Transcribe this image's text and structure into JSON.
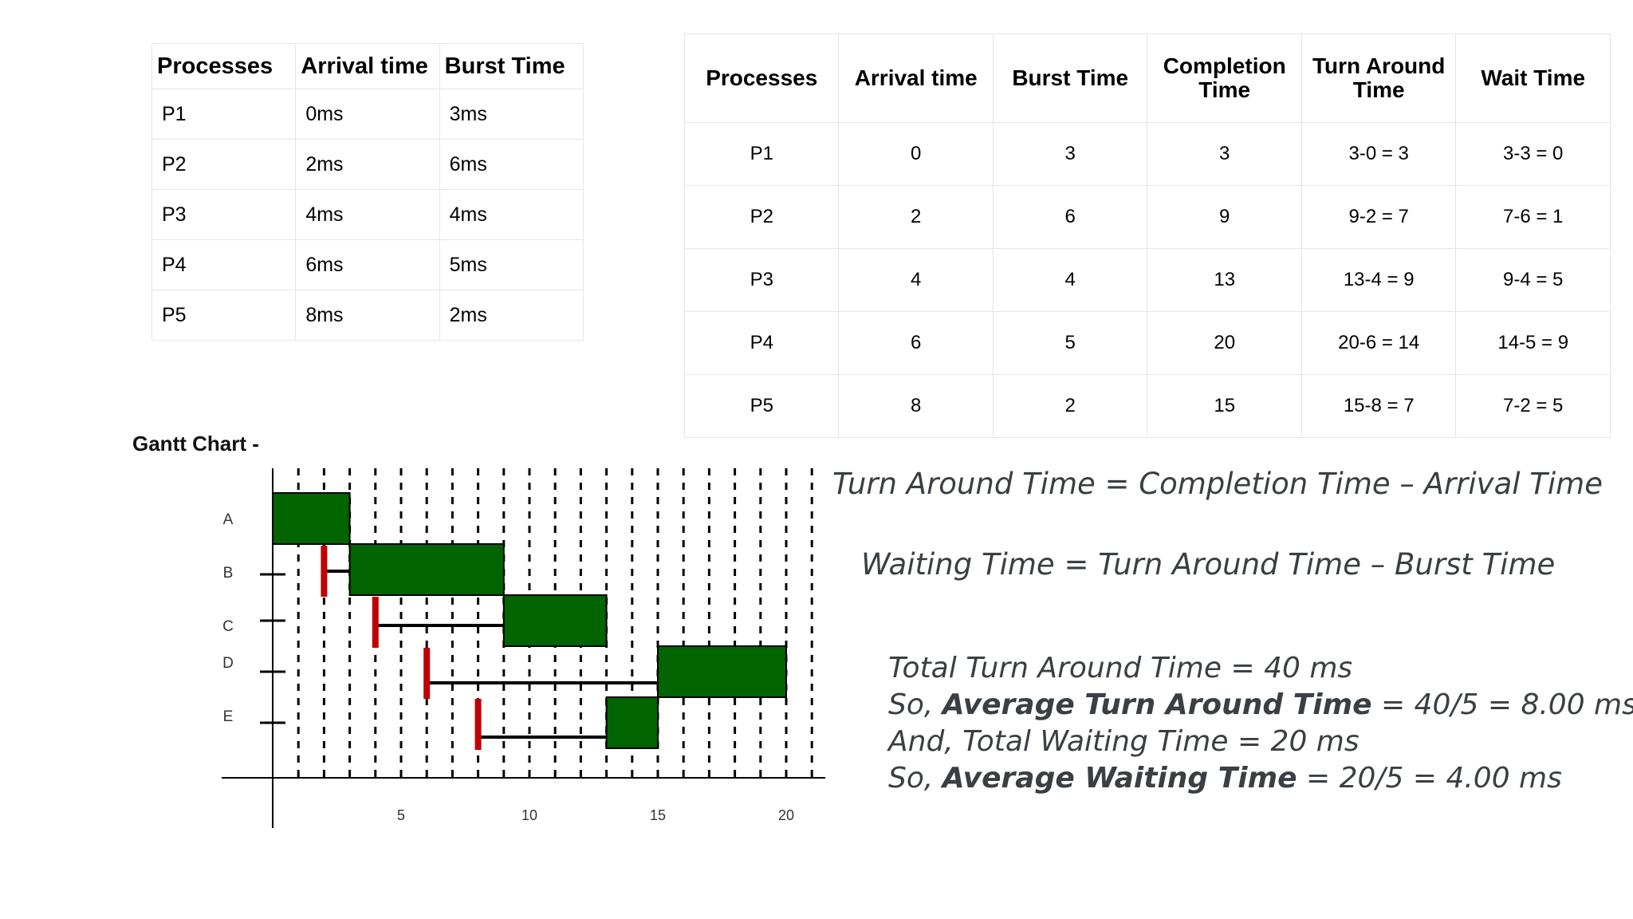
{
  "input_table": {
    "headers": [
      "Processes",
      "Arrival time",
      "Burst Time"
    ],
    "rows": [
      [
        "P1",
        "0ms",
        "3ms"
      ],
      [
        "P2",
        "2ms",
        "6ms"
      ],
      [
        "P3",
        "4ms",
        "4ms"
      ],
      [
        "P4",
        "6ms",
        "5ms"
      ],
      [
        "P5",
        "8ms",
        "2ms"
      ]
    ]
  },
  "result_table": {
    "headers": [
      "Processes",
      "Arrival time",
      "Burst Time",
      "Completion Time",
      "Turn Around Time",
      "Wait Time"
    ],
    "rows": [
      [
        "P1",
        "0",
        "3",
        "3",
        "3-0 = 3",
        "3-3 = 0"
      ],
      [
        "P2",
        "2",
        "6",
        "9",
        "9-2 = 7",
        "7-6 = 1"
      ],
      [
        "P3",
        "4",
        "4",
        "13",
        "13-4 = 9",
        "9-4 = 5"
      ],
      [
        "P4",
        "6",
        "5",
        "20",
        "20-6 = 14",
        "14-5 = 9"
      ],
      [
        "P5",
        "8",
        "2",
        "15",
        "15-8 = 7",
        "7-2 = 5"
      ]
    ]
  },
  "gantt": {
    "title": "Gantt Chart -",
    "x_ticks": [
      "5",
      "10",
      "15",
      "20"
    ],
    "tasks": [
      {
        "label": "A",
        "arrival": 0,
        "start": 0,
        "end": 3
      },
      {
        "label": "B",
        "arrival": 2,
        "start": 3,
        "end": 9
      },
      {
        "label": "C",
        "arrival": 4,
        "start": 9,
        "end": 13
      },
      {
        "label": "D",
        "arrival": 6,
        "start": 15,
        "end": 20
      },
      {
        "label": "E",
        "arrival": 8,
        "start": 13,
        "end": 15
      }
    ],
    "xlim": [
      0,
      21
    ],
    "colors": {
      "bar": "#006400",
      "arrival_marker": "#c00000",
      "wait_line": "#000000"
    }
  },
  "formulas": {
    "tat": "Turn Around Time = Completion Time  –  Arrival Time",
    "wt": "Waiting Time = Turn Around Time  –  Burst Time"
  },
  "summary": {
    "line1": "Total Turn Around Time = 40 ms",
    "line2_prefix": "So, ",
    "line2_bold": "Average Turn Around Time",
    "line2_suffix": " = 40/5 = 8.00 ms",
    "line3": "And, Total Waiting Time = 20 ms",
    "line4_prefix": "So, ",
    "line4_bold": "Average Waiting Time",
    "line4_suffix": " = 20/5 = 4.00 ms"
  }
}
